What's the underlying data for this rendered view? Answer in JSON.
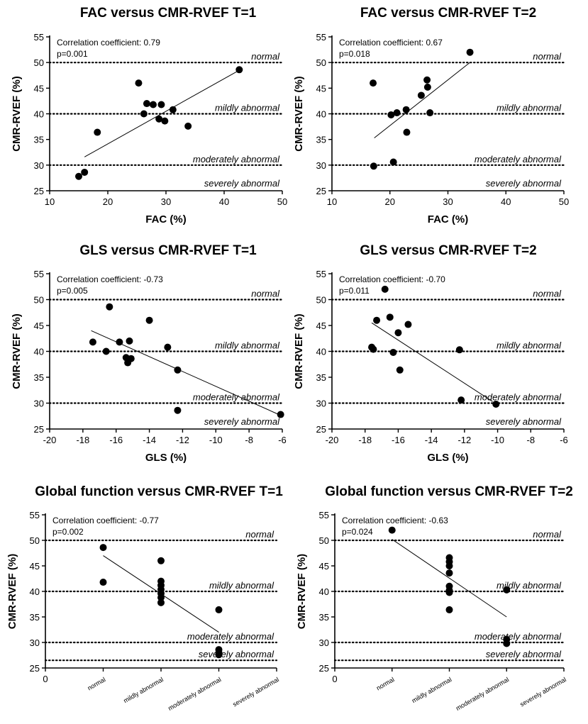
{
  "chart_data": [
    {
      "type": "scatter",
      "title": "FAC versus CMR-RVEF T=1",
      "xlabel": "FAC (%)",
      "ylabel": "CMR-RVEF (%)",
      "xlim": [
        10,
        50
      ],
      "ylim": [
        25,
        55
      ],
      "xticks": [
        10,
        20,
        30,
        40,
        50
      ],
      "yticks": [
        25,
        30,
        35,
        40,
        45,
        50,
        55
      ],
      "x": [
        15,
        16,
        18.2,
        25.3,
        26.2,
        26.7,
        27.8,
        28.8,
        29.2,
        29.8,
        31.2,
        33.8,
        42.6
      ],
      "y": [
        27.8,
        28.6,
        36.4,
        46,
        40,
        42,
        41.8,
        39,
        41.8,
        38.6,
        40.8,
        37.6,
        48.6
      ],
      "trend": [
        [
          16,
          31.6
        ],
        [
          42.6,
          48.5
        ]
      ],
      "correlation": "Correlation coefficient: 0.79",
      "p_value": "p=0.001",
      "reference_lines": [
        {
          "y": 50,
          "label": "normal"
        },
        {
          "y": 40,
          "label": "mildly abnormal"
        },
        {
          "y": 30,
          "label": "moderately abnormal"
        },
        {
          "y": 25,
          "label": "severely abnormal"
        }
      ]
    },
    {
      "type": "scatter",
      "title": "FAC versus CMR-RVEF T=2",
      "xlabel": "FAC (%)",
      "ylabel": "CMR-RVEF (%)",
      "xlim": [
        10,
        50
      ],
      "ylim": [
        25,
        55
      ],
      "xticks": [
        10,
        20,
        30,
        40,
        50
      ],
      "yticks": [
        25,
        30,
        35,
        40,
        45,
        50,
        55
      ],
      "x": [
        17.1,
        17.2,
        20.2,
        20.6,
        21.2,
        22.8,
        22.9,
        25.4,
        26.4,
        26.5,
        26.9,
        33.8
      ],
      "y": [
        46,
        29.8,
        39.8,
        30.6,
        40.2,
        40.8,
        36.4,
        43.6,
        46.6,
        45.2,
        40.2,
        52
      ],
      "trend": [
        [
          17.3,
          35.3
        ],
        [
          33.8,
          50
        ]
      ],
      "correlation": "Correlation coefficient: 0.67",
      "p_value": "p=0.018",
      "reference_lines": [
        {
          "y": 50,
          "label": "normal"
        },
        {
          "y": 40,
          "label": "mildly abnormal"
        },
        {
          "y": 30,
          "label": "moderately abnormal"
        },
        {
          "y": 25,
          "label": "severely abnormal"
        }
      ]
    },
    {
      "type": "scatter",
      "title": "GLS versus CMR-RVEF T=1",
      "xlabel": "GLS (%)",
      "ylabel": "CMR-RVEF (%)",
      "xlim": [
        -20,
        -6
      ],
      "ylim": [
        25,
        55
      ],
      "xticks": [
        -20,
        -18,
        -16,
        -14,
        -12,
        -10,
        -8,
        -6
      ],
      "yticks": [
        25,
        30,
        35,
        40,
        45,
        50,
        55
      ],
      "x": [
        -17.4,
        -16.6,
        -16.4,
        -15.8,
        -15.4,
        -15.3,
        -15.2,
        -15.1,
        -14,
        -12.9,
        -12.3,
        -12.3,
        -6.1
      ],
      "y": [
        41.8,
        40,
        48.6,
        41.8,
        38.8,
        37.8,
        42,
        38.6,
        46,
        40.8,
        36.4,
        28.6,
        27.8
      ],
      "trend": [
        [
          -17.5,
          44
        ],
        [
          -6,
          27.5
        ]
      ],
      "correlation": "Correlation coefficient: -0.73",
      "p_value": "p=0.005",
      "reference_lines": [
        {
          "y": 50,
          "label": "normal"
        },
        {
          "y": 40,
          "label": "mildly abnormal"
        },
        {
          "y": 30,
          "label": "moderately abnormal"
        },
        {
          "y": 25,
          "label": "severely abnormal"
        }
      ]
    },
    {
      "type": "scatter",
      "title": "GLS versus CMR-RVEF T=2",
      "xlabel": "GLS (%)",
      "ylabel": "CMR-RVEF (%)",
      "xlim": [
        -20,
        -6
      ],
      "ylim": [
        25,
        55
      ],
      "xticks": [
        -20,
        -18,
        -16,
        -14,
        -12,
        -10,
        -8,
        -6
      ],
      "yticks": [
        25,
        30,
        35,
        40,
        45,
        50,
        55
      ],
      "x": [
        -17.6,
        -17.5,
        -17.3,
        -16.8,
        -16.5,
        -16.3,
        -16,
        -15.9,
        -15.4,
        -12.3,
        -12.2,
        -10.1
      ],
      "y": [
        40.8,
        40.4,
        46,
        52,
        46.6,
        39.8,
        43.6,
        36.4,
        45.2,
        40.3,
        30.6,
        29.8
      ],
      "trend": [
        [
          -17.6,
          45.5
        ],
        [
          -10.3,
          30.3
        ]
      ],
      "correlation": "Correlation coefficient: -0.70",
      "p_value": "p=0.011",
      "reference_lines": [
        {
          "y": 50,
          "label": "normal"
        },
        {
          "y": 40,
          "label": "mildly abnormal"
        },
        {
          "y": 30,
          "label": "moderately abnormal"
        },
        {
          "y": 25,
          "label": "severely abnormal"
        }
      ]
    },
    {
      "type": "scatter",
      "title": "Global function versus CMR-RVEF T=1",
      "xlabel": "",
      "ylabel": "CMR-RVEF (%)",
      "xlim": [
        0,
        4
      ],
      "ylim": [
        25,
        55
      ],
      "xticks": [
        0
      ],
      "yticks": [
        25,
        30,
        35,
        40,
        45,
        50,
        55
      ],
      "categories": [
        "normal",
        "mildly abnormal",
        "moderately abnormal",
        "severely abnormal"
      ],
      "x": [
        1,
        1,
        2,
        2,
        2,
        2,
        2,
        2,
        2,
        3,
        3,
        3,
        3
      ],
      "y": [
        48.6,
        41.8,
        46,
        42,
        41.2,
        40.4,
        39.6,
        38.8,
        37.8,
        36.4,
        28.6,
        28,
        27.6
      ],
      "trend": [
        [
          1,
          47
        ],
        [
          3,
          32
        ]
      ],
      "correlation": "Correlation coefficient: -0.77",
      "p_value": "p=0.002",
      "reference_lines": [
        {
          "y": 50,
          "label": "normal"
        },
        {
          "y": 40,
          "label": "mildly abnormal"
        },
        {
          "y": 30,
          "label": "moderately abnormal"
        },
        {
          "y": 26.5,
          "label": "severely abnormal"
        }
      ]
    },
    {
      "type": "scatter",
      "title": "Global function versus CMR-RVEF T=2",
      "xlabel": "",
      "ylabel": "CMR-RVEF (%)",
      "xlim": [
        0,
        4
      ],
      "ylim": [
        25,
        55
      ],
      "xticks": [
        0
      ],
      "yticks": [
        25,
        30,
        35,
        40,
        45,
        50,
        55
      ],
      "categories": [
        "normal",
        "mildly abnormal",
        "moderately abnormal",
        "severely abnormal"
      ],
      "x": [
        1,
        2,
        2,
        2,
        2,
        2,
        2,
        2,
        2,
        3,
        3,
        3
      ],
      "y": [
        52,
        46.6,
        45.8,
        45,
        43.6,
        41,
        40.2,
        39.8,
        36.4,
        40.3,
        30.6,
        29.8
      ],
      "trend": [
        [
          1,
          50.2
        ],
        [
          3,
          35
        ]
      ],
      "correlation": "Correlation coefficient: -0.63",
      "p_value": "p=0.024",
      "reference_lines": [
        {
          "y": 50,
          "label": "normal"
        },
        {
          "y": 40,
          "label": "mildly abnormal"
        },
        {
          "y": 30,
          "label": "moderately abnormal"
        },
        {
          "y": 26.5,
          "label": "severely abnormal"
        }
      ]
    }
  ]
}
